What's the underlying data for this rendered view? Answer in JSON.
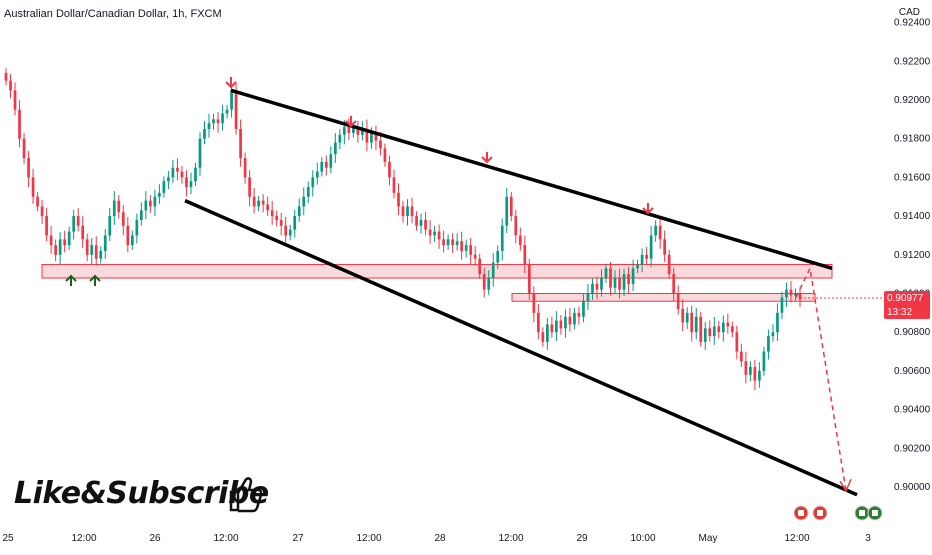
{
  "header": {
    "title": "Australian Dollar/Canadian Dollar, 1h, FXCM",
    "currency": "CAD"
  },
  "price_marker": {
    "price": "0.90977",
    "countdown": "13:32",
    "color": "#f23645"
  },
  "overlay": {
    "cta_text": "Like&Subscribe"
  },
  "colors": {
    "up": "#089981",
    "down": "#f23645",
    "zone_fill": "#f8c9cd",
    "zone_stroke": "#f23645",
    "trendline": "#000000",
    "arrow_down": "#f23645",
    "arrow_up": "#1b5e20"
  },
  "chart_data": {
    "type": "candlestick",
    "title": "Australian Dollar/Canadian Dollar, 1h, FXCM",
    "x_tick_labels": [
      "25",
      "12:00",
      "26",
      "12:00",
      "27",
      "12:00",
      "28",
      "12:00",
      "29",
      "10:00",
      "May",
      "12:00",
      "3"
    ],
    "y_tick_labels": [
      "0.92400",
      "0.92200",
      "0.92000",
      "0.91800",
      "0.91600",
      "0.91400",
      "0.91200",
      "0.91000",
      "0.90800",
      "0.90600",
      "0.90400",
      "0.90200",
      "0.90000"
    ],
    "ylim": [
      0.8988,
      0.9245
    ],
    "last_price": 0.90977,
    "trendlines": [
      {
        "from": {
          "x": "26 12:00",
          "y": 0.9205
        },
        "to": {
          "x": "May 12:00+",
          "y": 0.9113
        }
      },
      {
        "from": {
          "x": "26 08:00",
          "y": 0.9148
        },
        "to": {
          "x": "May 14:00+",
          "y": 0.8996
        }
      }
    ],
    "support_resistance_zones": [
      {
        "low": 0.9108,
        "high": 0.9115
      },
      {
        "low": 0.9096,
        "high": 0.91
      }
    ],
    "projection": [
      0.9098,
      0.9113,
      0.8998
    ],
    "closes": [
      0.921,
      0.9205,
      0.9195,
      0.918,
      0.917,
      0.916,
      0.915,
      0.9145,
      0.914,
      0.913,
      0.9125,
      0.912,
      0.9128,
      0.9125,
      0.9132,
      0.914,
      0.9135,
      0.9128,
      0.912,
      0.9125,
      0.9118,
      0.9122,
      0.913,
      0.914,
      0.9148,
      0.9142,
      0.9135,
      0.9125,
      0.913,
      0.9138,
      0.9143,
      0.9148,
      0.9145,
      0.915,
      0.9152,
      0.9158,
      0.916,
      0.9165,
      0.9163,
      0.916,
      0.9155,
      0.9158,
      0.9165,
      0.918,
      0.9185,
      0.9188,
      0.919,
      0.9188,
      0.9193,
      0.9195,
      0.9205,
      0.9185,
      0.917,
      0.916,
      0.915,
      0.9145,
      0.9148,
      0.9146,
      0.9143,
      0.914,
      0.9138,
      0.9135,
      0.913,
      0.9133,
      0.914,
      0.9145,
      0.915,
      0.9155,
      0.916,
      0.9163,
      0.9168,
      0.9165,
      0.9172,
      0.9178,
      0.9182,
      0.9186,
      0.9183,
      0.9186,
      0.9182,
      0.9185,
      0.9178,
      0.9183,
      0.9179,
      0.9175,
      0.9168,
      0.916,
      0.9152,
      0.9145,
      0.914,
      0.9145,
      0.914,
      0.9135,
      0.9138,
      0.9133,
      0.913,
      0.9132,
      0.9128,
      0.9125,
      0.9128,
      0.9125,
      0.9127,
      0.9122,
      0.9125,
      0.912,
      0.9118,
      0.911,
      0.9102,
      0.9108,
      0.9116,
      0.9122,
      0.9135,
      0.915,
      0.914,
      0.913,
      0.9125,
      0.9115,
      0.91,
      0.909,
      0.908,
      0.9075,
      0.9084,
      0.908,
      0.9086,
      0.9082,
      0.9088,
      0.9084,
      0.909,
      0.9088,
      0.9096,
      0.91,
      0.9105,
      0.9102,
      0.9108,
      0.9113,
      0.9103,
      0.9108,
      0.9102,
      0.911,
      0.9105,
      0.9113,
      0.9115,
      0.912,
      0.9118,
      0.913,
      0.9135,
      0.9128,
      0.912,
      0.911,
      0.91,
      0.9092,
      0.9085,
      0.909,
      0.908,
      0.9088,
      0.9075,
      0.9082,
      0.9078,
      0.9083,
      0.908,
      0.9085,
      0.9083,
      0.908,
      0.907,
      0.9065,
      0.9058,
      0.9062,
      0.9055,
      0.906,
      0.907,
      0.9078,
      0.908,
      0.909,
      0.9098,
      0.9102,
      0.9099,
      0.91,
      0.9097
    ]
  }
}
